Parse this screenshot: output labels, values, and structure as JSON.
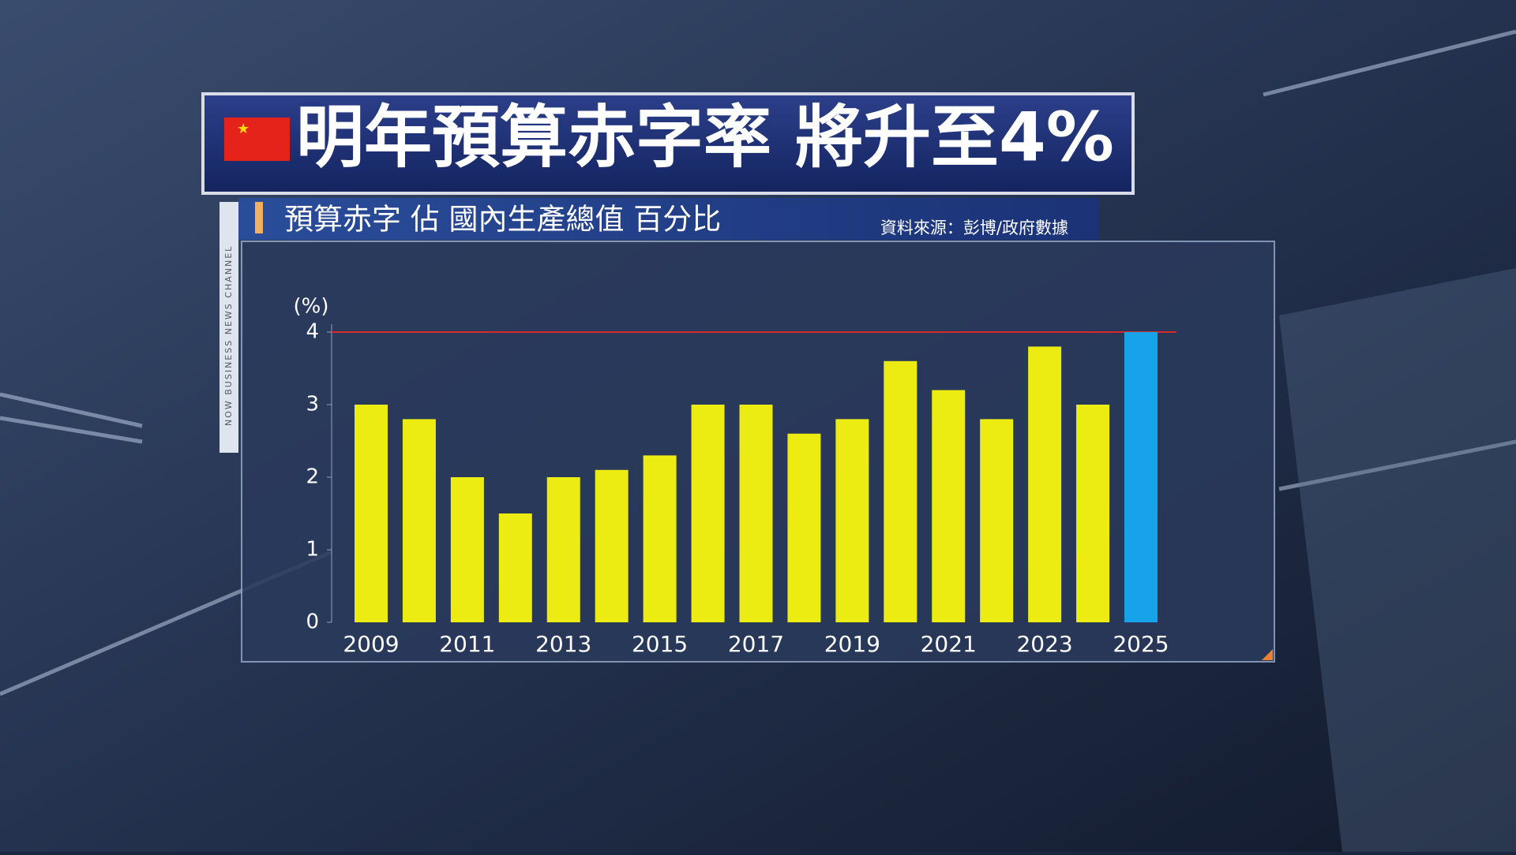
{
  "header": {
    "title": "明年預算赤字率 將升至4%",
    "subtitle": "預算赤字 佔 國內生產總值 百分比",
    "source": "資料來源：彭博/政府數據",
    "channel": "NOW BUSINESS NEWS CHANNEL"
  },
  "chart_data": {
    "type": "bar",
    "y_label": "(%)",
    "categories": [
      "2009",
      null,
      "2011",
      null,
      "2013",
      null,
      "2015",
      null,
      "2017",
      null,
      "2019",
      null,
      "2021",
      null,
      "2023",
      null,
      "2025"
    ],
    "values": [
      3.0,
      2.8,
      2.0,
      1.5,
      2.0,
      2.1,
      2.3,
      3.0,
      3.0,
      2.6,
      2.8,
      3.6,
      3.2,
      2.8,
      3.8,
      3.0,
      4.0
    ],
    "colors": [
      "#ecec12",
      "#ecec12",
      "#ecec12",
      "#ecec12",
      "#ecec12",
      "#ecec12",
      "#ecec12",
      "#ecec12",
      "#ecec12",
      "#ecec12",
      "#ecec12",
      "#ecec12",
      "#ecec12",
      "#ecec12",
      "#ecec12",
      "#ecec12",
      "#17a3ea"
    ],
    "ylim": [
      0,
      4
    ],
    "yticks": [
      0,
      1,
      2,
      3,
      4
    ],
    "reference_line": {
      "value": 4,
      "color": "#d42a2a"
    }
  }
}
